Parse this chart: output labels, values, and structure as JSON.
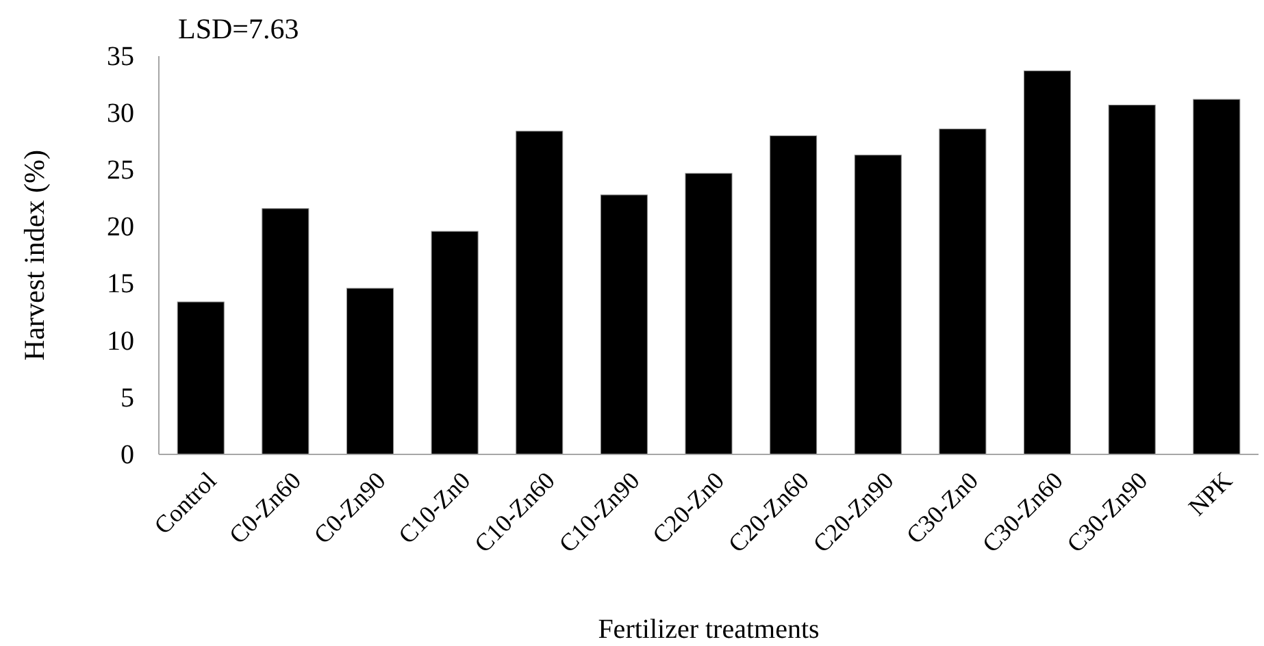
{
  "chart_data": {
    "type": "bar",
    "xlabel": "Fertilizer treatments",
    "ylabel": "Harvest index (%)",
    "annotations": [
      "LSD=7.63"
    ],
    "categories": [
      "Control",
      "C0-Zn60",
      "C0-Zn90",
      "C10-Zn0",
      "C10-Zn60",
      "C10-Zn90",
      "C20-Zn0",
      "C20-Zn60",
      "C20-Zn90",
      "C30-Zn0",
      "C30-Zn60",
      "C30-Zn90",
      "NPK"
    ],
    "values": [
      13.4,
      21.6,
      14.6,
      19.6,
      28.4,
      22.8,
      24.7,
      28.0,
      26.3,
      28.6,
      33.7,
      30.7,
      31.2
    ],
    "color": "#000000",
    "ylim": [
      0,
      35
    ],
    "yticks": [
      0,
      5,
      10,
      15,
      20,
      25,
      30,
      35
    ],
    "grid": false
  }
}
